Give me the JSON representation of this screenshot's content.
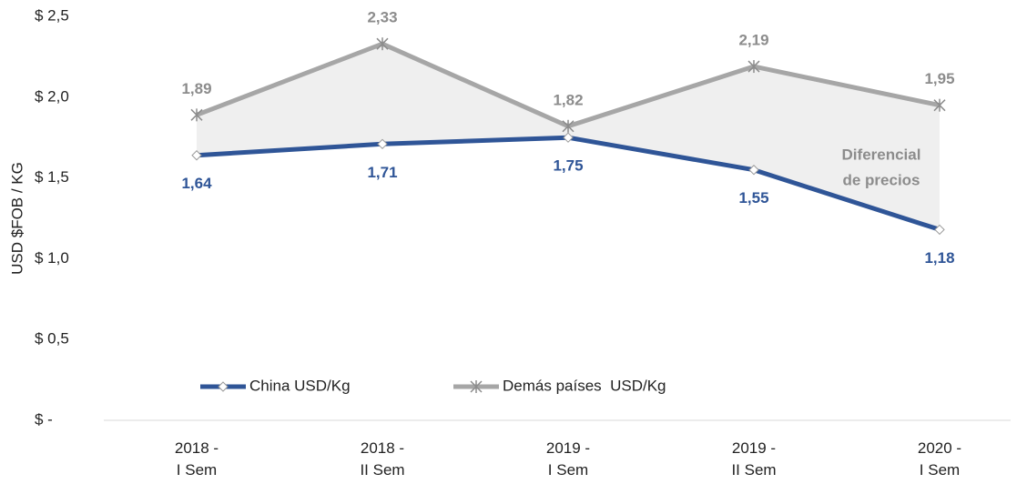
{
  "chart_data": {
    "type": "line",
    "y_label": "USD $FOB / KG",
    "categories": [
      [
        "2018 -",
        "I Sem"
      ],
      [
        "2018 -",
        "II Sem"
      ],
      [
        "2019 -",
        "I Sem"
      ],
      [
        "2019 -",
        "II Sem"
      ],
      [
        "2020 -",
        "I Sem"
      ]
    ],
    "series": [
      {
        "name": "China USD/Kg",
        "color": "#2f5597",
        "label_color": "#2f5597",
        "marker": "diamond",
        "values": [
          1.64,
          1.71,
          1.75,
          1.55,
          1.18
        ],
        "value_labels": [
          "1,64",
          "1,71",
          "1,75",
          "1,55",
          "1,18"
        ],
        "label_position": "below"
      },
      {
        "name": "Demás países  USD/Kg",
        "color": "#a6a6a6",
        "label_color": "#8c8c8c",
        "marker": "asterisk",
        "values": [
          1.89,
          2.33,
          1.82,
          2.19,
          1.95
        ],
        "value_labels": [
          "1,89",
          "2,33",
          "1,82",
          "2,19",
          "1,95"
        ],
        "label_position": "above"
      }
    ],
    "fill_between_color": "#efefef",
    "annotation": [
      "Diferencial",
      "de precios"
    ],
    "ylim": [
      0,
      2.5
    ],
    "yticks": [
      {
        "value": 0,
        "label": "$ -"
      },
      {
        "value": 0.5,
        "label": "$ 0,5"
      },
      {
        "value": 1,
        "label": "$ 1,0"
      },
      {
        "value": 1.5,
        "label": "$ 1,5"
      },
      {
        "value": 2,
        "label": "$ 2,0"
      },
      {
        "value": 2.5,
        "label": "$ 2,5"
      }
    ],
    "grid": false
  }
}
